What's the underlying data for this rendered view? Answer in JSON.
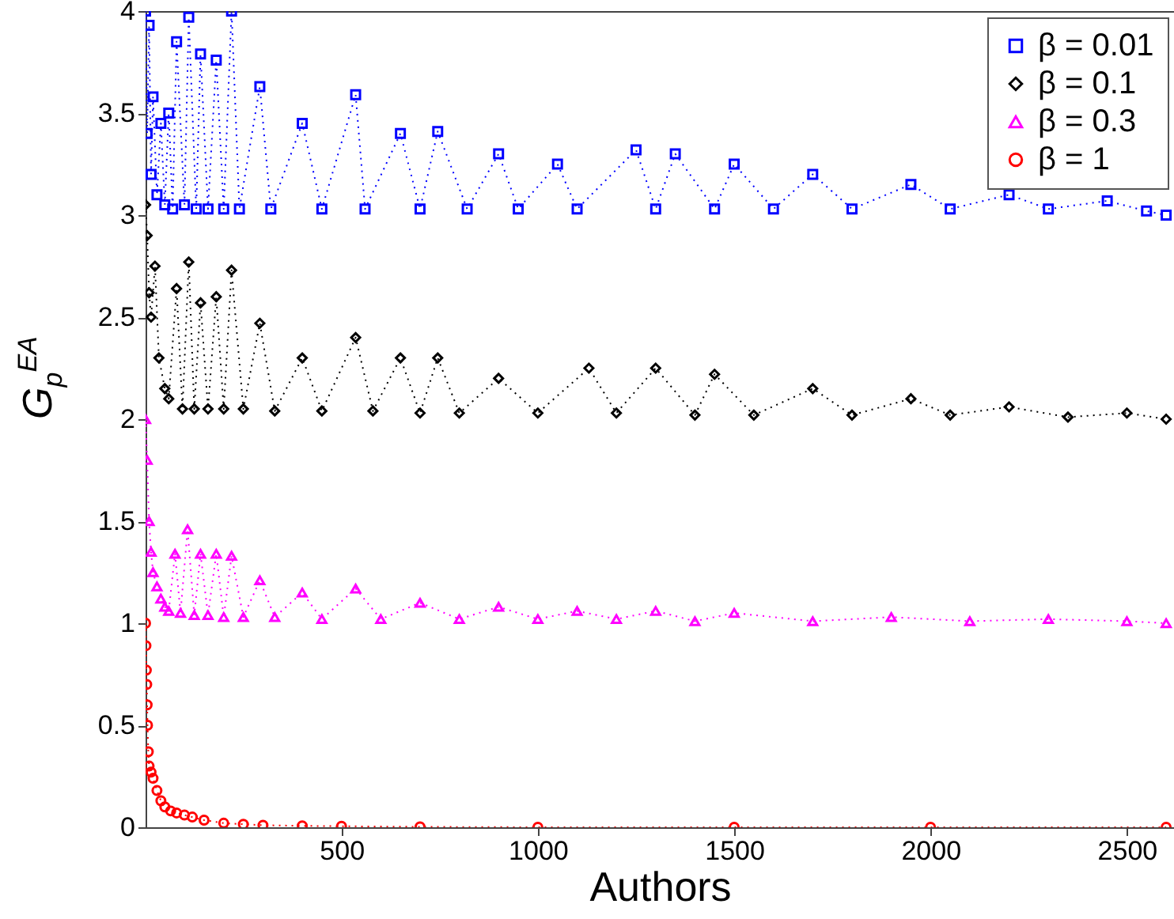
{
  "chart_data": {
    "type": "line",
    "xlabel": "Authors",
    "ylabel": "G$_{p}$$^{EA}$",
    "xlim": [
      1,
      2620
    ],
    "ylim": [
      0,
      4
    ],
    "xticks": [
      500,
      1000,
      1500,
      2000,
      2500
    ],
    "yticks": [
      0,
      0.5,
      1,
      1.5,
      2,
      2.5,
      3,
      3.5,
      4
    ],
    "grid": false,
    "legend": "top right",
    "line_style": "dotted",
    "series": [
      {
        "name": "β = 0.01",
        "color": "#0000ff",
        "marker": "square",
        "x": [
          1,
          5,
          10,
          15,
          20,
          30,
          40,
          50,
          60,
          70,
          80,
          100,
          111,
          130,
          141,
          160,
          181,
          200,
          220,
          240,
          292,
          320,
          400,
          450,
          536,
          560,
          650,
          700,
          745,
          820,
          900,
          950,
          1050,
          1100,
          1250,
          1300,
          1350,
          1450,
          1500,
          1600,
          1700,
          1800,
          1950,
          2050,
          2200,
          2300,
          2450,
          2550,
          2600
        ],
        "values": [
          4.0,
          3.4,
          3.93,
          3.2,
          3.58,
          3.1,
          3.45,
          3.05,
          3.5,
          3.03,
          3.85,
          3.05,
          3.97,
          3.03,
          3.79,
          3.03,
          3.76,
          3.03,
          4.0,
          3.03,
          3.63,
          3.03,
          3.45,
          3.03,
          3.59,
          3.03,
          3.4,
          3.03,
          3.41,
          3.03,
          3.3,
          3.03,
          3.25,
          3.03,
          3.32,
          3.03,
          3.3,
          3.03,
          3.25,
          3.03,
          3.2,
          3.03,
          3.15,
          3.03,
          3.1,
          3.03,
          3.07,
          3.02,
          3.0
        ]
      },
      {
        "name": "β = 0.1",
        "color": "#000000",
        "marker": "diamond",
        "x": [
          1,
          5,
          10,
          15,
          25,
          35,
          50,
          60,
          80,
          95,
          111,
          125,
          141,
          160,
          181,
          200,
          220,
          250,
          292,
          330,
          400,
          450,
          536,
          580,
          650,
          700,
          745,
          800,
          900,
          1000,
          1130,
          1200,
          1300,
          1400,
          1450,
          1550,
          1700,
          1800,
          1950,
          2050,
          2200,
          2350,
          2500,
          2600
        ],
        "values": [
          3.05,
          2.9,
          2.62,
          2.5,
          2.75,
          2.3,
          2.15,
          2.1,
          2.64,
          2.05,
          2.77,
          2.05,
          2.57,
          2.05,
          2.6,
          2.05,
          2.73,
          2.05,
          2.47,
          2.04,
          2.3,
          2.04,
          2.4,
          2.04,
          2.3,
          2.03,
          2.3,
          2.03,
          2.2,
          2.03,
          2.25,
          2.03,
          2.25,
          2.02,
          2.22,
          2.02,
          2.15,
          2.02,
          2.1,
          2.02,
          2.06,
          2.01,
          2.03,
          2.0
        ]
      },
      {
        "name": "β = 0.3",
        "color": "#ff00ff",
        "marker": "triangle",
        "x": [
          1,
          5,
          10,
          15,
          20,
          30,
          40,
          50,
          60,
          76,
          90,
          108,
          125,
          141,
          160,
          181,
          200,
          220,
          250,
          292,
          330,
          400,
          450,
          536,
          600,
          700,
          800,
          900,
          1000,
          1100,
          1200,
          1300,
          1400,
          1500,
          1700,
          1900,
          2100,
          2300,
          2500,
          2600
        ],
        "values": [
          2.0,
          1.8,
          1.5,
          1.35,
          1.25,
          1.18,
          1.12,
          1.08,
          1.06,
          1.34,
          1.05,
          1.46,
          1.04,
          1.34,
          1.04,
          1.34,
          1.03,
          1.33,
          1.03,
          1.21,
          1.03,
          1.15,
          1.02,
          1.17,
          1.02,
          1.1,
          1.02,
          1.08,
          1.02,
          1.06,
          1.02,
          1.06,
          1.01,
          1.05,
          1.01,
          1.03,
          1.01,
          1.02,
          1.01,
          1.0
        ]
      },
      {
        "name": "β = 1",
        "color": "#ff0000",
        "marker": "circle",
        "x": [
          1,
          2,
          3,
          4,
          5,
          6,
          8,
          10,
          15,
          20,
          30,
          40,
          50,
          65,
          80,
          100,
          120,
          150,
          200,
          250,
          300,
          400,
          500,
          700,
          1000,
          1500,
          2000,
          2600
        ],
        "values": [
          1.0,
          0.89,
          0.77,
          0.7,
          0.6,
          0.5,
          0.37,
          0.3,
          0.27,
          0.24,
          0.18,
          0.13,
          0.1,
          0.08,
          0.07,
          0.06,
          0.05,
          0.035,
          0.02,
          0.015,
          0.01,
          0.007,
          0.005,
          0.002,
          0.0,
          0.0,
          0.0,
          0.0
        ]
      }
    ]
  }
}
